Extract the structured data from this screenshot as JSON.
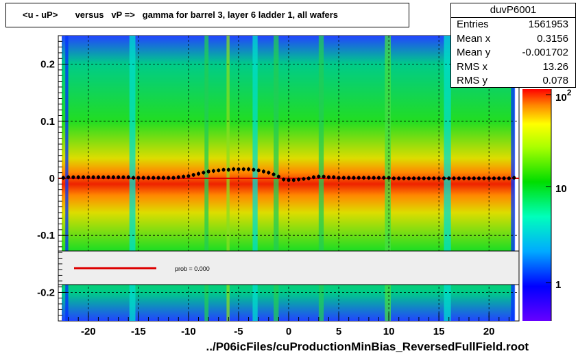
{
  "title": "<u - uP>       versus   vP =>   gamma for barrel 3, layer 6 ladder 1, all wafers",
  "stats": {
    "name": "duvP6001",
    "rows": [
      {
        "label": "Entries",
        "value": "1561953"
      },
      {
        "label": "Mean x",
        "value": "0.3156"
      },
      {
        "label": "Mean y",
        "value": "-0.001702"
      },
      {
        "label": "RMS x",
        "value": "13.26"
      },
      {
        "label": "RMS y",
        "value": "0.078"
      }
    ]
  },
  "fit_legend": {
    "text": "prob = 0.000",
    "line_color": "#dd0000"
  },
  "x_title": "../P06icFiles/cuProductionMinBias_ReversedFullField.root",
  "colorbar": {
    "labels": [
      "10",
      "10",
      "1"
    ],
    "label_exps": [
      "2",
      "",
      ""
    ]
  },
  "colors": {
    "profile": "#000000",
    "fit_line": "#dd0000",
    "legend_bg": "#eeeeee"
  },
  "chart_data": {
    "type": "heatmap",
    "title": "<u - uP>       versus   vP =>   gamma for barrel 3, layer 6 ladder 1, all wafers",
    "xlabel": "../P06icFiles/cuProductionMinBias_ReversedFullField.root",
    "ylabel": "",
    "xlim": [
      -23,
      23
    ],
    "ylim": [
      -0.25,
      0.25
    ],
    "x_ticks": [
      -20,
      -15,
      -10,
      -5,
      0,
      5,
      10,
      15,
      20
    ],
    "x_tick_labels": [
      "-20",
      "-15",
      "-10",
      "-5",
      "0",
      "5",
      "10",
      "15",
      "20"
    ],
    "y_ticks": [
      -0.2,
      -0.1,
      0,
      0.1,
      0.2
    ],
    "y_tick_labels": [
      "-0.2",
      "-0.1",
      "0",
      "0.1",
      "0.2"
    ],
    "z_scale": "log",
    "grid": true,
    "profile": {
      "x": [
        -22.5,
        -22,
        -21.5,
        -21,
        -20.5,
        -20,
        -19.5,
        -19,
        -18.5,
        -18,
        -17.5,
        -17,
        -16.5,
        -16,
        -15.5,
        -15,
        -14.5,
        -14,
        -13.5,
        -13,
        -12.5,
        -12,
        -11.5,
        -11,
        -10.5,
        -10,
        -9.5,
        -9,
        -8.5,
        -8,
        -7.5,
        -7,
        -6.5,
        -6,
        -5.5,
        -5,
        -4.5,
        -4,
        -3.5,
        -3,
        -2.5,
        -2,
        -1.5,
        -1,
        -0.5,
        0,
        0.5,
        1,
        1.5,
        2,
        2.5,
        3,
        3.5,
        4,
        4.5,
        5,
        5.5,
        6,
        6.5,
        7,
        7.5,
        8,
        8.5,
        9,
        9.5,
        10,
        10.5,
        11,
        11.5,
        12,
        12.5,
        13,
        13.5,
        14,
        14.5,
        15,
        15.5,
        16,
        16.5,
        17,
        17.5,
        18,
        18.5,
        19,
        19.5,
        20,
        20.5,
        21,
        21.5,
        22,
        22.5
      ],
      "y": [
        0.001,
        0.002,
        0.002,
        0.002,
        0.002,
        0.002,
        0.002,
        0.002,
        0.002,
        0.002,
        0.002,
        0.002,
        0.002,
        0.002,
        0.001,
        0.001,
        0.001,
        0.001,
        0.001,
        0.001,
        0.001,
        0.001,
        0.001,
        0.002,
        0.003,
        0.004,
        0.006,
        0.008,
        0.01,
        0.012,
        0.013,
        0.014,
        0.015,
        0.015,
        0.016,
        0.016,
        0.016,
        0.016,
        0.015,
        0.014,
        0.012,
        0.01,
        0.007,
        0.003,
        -0.002,
        -0.003,
        -0.003,
        -0.002,
        -0.001,
        0.0,
        0.002,
        0.003,
        0.003,
        0.002,
        0.002,
        0.001,
        0.001,
        0.001,
        0.001,
        0.001,
        0.001,
        0.001,
        0.001,
        0.001,
        0.001,
        0.001,
        0.0,
        0.0,
        0.0,
        0.0,
        0.0,
        0.0,
        0.0,
        0.0,
        0.0,
        0.0,
        0.0,
        0.0,
        0.0,
        0.0,
        0.0,
        0.0,
        0.0,
        0.0,
        0.0,
        0.0,
        0.0,
        0.0,
        0.0,
        0.0,
        0.001
      ]
    },
    "fit": {
      "x": [
        -23,
        23
      ],
      "y": [
        0.0,
        0.0
      ]
    },
    "legend": "middle band"
  }
}
